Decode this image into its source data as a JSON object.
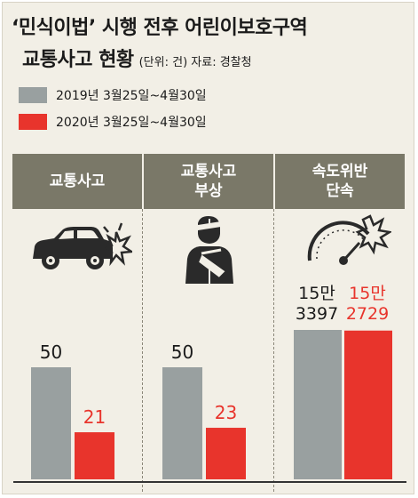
{
  "title_line1": "‘민식이법’ 시행 전후 어린이보호구역",
  "title_line2": "교통사고 현황",
  "unit_note": "(단위: 건) 자료: 경찰청",
  "legend": [
    {
      "label": "2019년 3월25일~4월30일",
      "color": "#99a0a0"
    },
    {
      "label": "2020년 3월25일~4월30일",
      "color": "#e8342c"
    }
  ],
  "categories": [
    {
      "line1": "교통사고",
      "line2": "",
      "icon": "car-crash-icon"
    },
    {
      "line1": "교통사고",
      "line2": "부상",
      "icon": "injured-person-icon"
    },
    {
      "line1": "속도위반",
      "line2": "단속",
      "icon": "speedometer-icon"
    }
  ],
  "chart_data": {
    "type": "bar",
    "categories": [
      "교통사고",
      "교통사고 부상",
      "속도위반 단속"
    ],
    "series": [
      {
        "name": "2019년 3월25일~4월30일",
        "values": [
          50,
          50,
          153397
        ],
        "labels": [
          "50",
          "50",
          ""
        ],
        "color": "#99a0a0"
      },
      {
        "name": "2020년 3월25일~4월30일",
        "values": [
          21,
          23,
          152729
        ],
        "labels": [
          "21",
          "23",
          ""
        ],
        "color": "#e8342c"
      }
    ],
    "big_labels": {
      "s2019_line1": "15만",
      "s2019_line2": "3397",
      "s2020_line1": "15만",
      "s2020_line2": "2729"
    },
    "title": "",
    "xlabel": "",
    "ylabel": ""
  }
}
